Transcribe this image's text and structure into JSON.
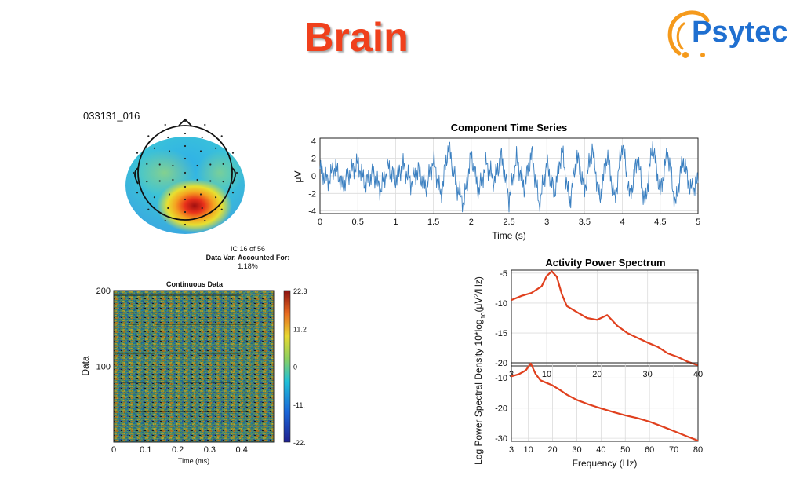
{
  "slide": {
    "title": "Brain",
    "logo_text": "Psytec"
  },
  "topomap": {
    "component_id": "033131_016",
    "ic_label": "IC 16 of 56",
    "var_label": "Data Var. Accounted For:",
    "var_value": "1.18%"
  },
  "colors": {
    "accent_title": "#f0401c",
    "spectrum_line": "#e0401e",
    "timeseries_line": "#3a7fc0",
    "logo_blue": "#1f6fd0",
    "logo_orange": "#f59a1c"
  },
  "chart_data": [
    {
      "id": "time-series",
      "type": "line",
      "title": "Component Time Series",
      "xlabel": "Time (s)",
      "ylabel": "μV",
      "xlim": [
        0,
        5
      ],
      "ylim": [
        -4.3,
        4.3
      ],
      "x_ticks": [
        "0",
        "0.5",
        "1",
        "1.5",
        "2",
        "2.5",
        "3",
        "3.5",
        "4",
        "4.5",
        "5"
      ],
      "y_ticks": [
        "4",
        "2",
        "0",
        "-2",
        "-4"
      ],
      "grid": true,
      "series": [
        {
          "x": [
            0,
            0.1,
            0.2,
            0.3,
            0.4,
            0.5,
            0.6,
            0.7,
            0.8,
            0.9,
            1.0,
            1.1,
            1.2,
            1.3,
            1.4,
            1.5,
            1.6,
            1.7,
            1.8,
            1.9,
            2.0,
            2.1,
            2.2,
            2.3,
            2.4,
            2.5,
            2.6,
            2.7,
            2.8,
            2.9,
            3.0,
            3.1,
            3.2,
            3.3,
            3.4,
            3.5,
            3.6,
            3.7,
            3.8,
            3.9,
            4.0,
            4.1,
            4.2,
            4.3,
            4.4,
            4.5,
            4.6,
            4.7,
            4.8,
            4.9,
            5.0
          ],
          "values": [
            0.8,
            -0.6,
            1.1,
            -1.2,
            0.5,
            1.4,
            -0.9,
            0.3,
            -1.6,
            1.0,
            -0.4,
            1.2,
            -0.8,
            0.6,
            -1.4,
            1.8,
            -2.3,
            3.5,
            -1.0,
            -3.2,
            2.4,
            -1.8,
            1.5,
            -0.6,
            2.2,
            -2.7,
            1.9,
            -1.3,
            2.6,
            -3.4,
            1.4,
            -2.0,
            3.0,
            -3.1,
            2.2,
            -1.6,
            3.2,
            -2.8,
            2.5,
            -2.9,
            3.8,
            -2.5,
            2.1,
            -3.3,
            3.6,
            -1.9,
            2.8,
            -3.4,
            2.0,
            -1.5,
            -0.8
          ]
        }
      ]
    },
    {
      "id": "continuous-data",
      "type": "heatmap",
      "title": "Continuous Data",
      "xlabel": "Time (ms)",
      "ylabel": "Data",
      "xlim": [
        0,
        0.5
      ],
      "ylim": [
        0,
        200
      ],
      "x_ticks": [
        "0",
        "0.1",
        "0.2",
        "0.3",
        "0.4"
      ],
      "y_ticks": [
        "200",
        "100"
      ],
      "colorbar_ticks": [
        "22.3",
        "11.2",
        "0",
        "-11.",
        "-22."
      ],
      "clim": [
        -22.3,
        22.3
      ]
    },
    {
      "id": "power-spectrum-upper",
      "type": "line",
      "title": "Activity Power Spectrum",
      "xlabel": "",
      "ylabel": "",
      "xlim": [
        3,
        40
      ],
      "ylim": [
        -20.5,
        -4.5
      ],
      "x_ticks": [
        "3",
        "10",
        "20",
        "30",
        "40"
      ],
      "y_ticks": [
        "-5",
        "-10",
        "-15",
        "-20"
      ],
      "grid": true,
      "series": [
        {
          "x": [
            3,
            5,
            7,
            9,
            10,
            11,
            12,
            13,
            14,
            16,
            18,
            20,
            22,
            24,
            26,
            28,
            30,
            32,
            34,
            36,
            38,
            40
          ],
          "values": [
            -9.5,
            -8.8,
            -8.3,
            -7.2,
            -5.5,
            -4.7,
            -5.6,
            -8.5,
            -10.5,
            -11.5,
            -12.5,
            -12.8,
            -12.0,
            -13.8,
            -15.0,
            -15.8,
            -16.6,
            -17.3,
            -18.4,
            -19.0,
            -19.8,
            -20.4
          ]
        }
      ]
    },
    {
      "id": "power-spectrum-lower",
      "type": "line",
      "title": "",
      "xlabel": "Frequency (Hz)",
      "ylabel": "Log Power Spectral Density 10*log10(μV²/Hz)",
      "xlim": [
        3,
        80
      ],
      "ylim": [
        -31,
        -5
      ],
      "x_ticks": [
        "3",
        "10",
        "20",
        "30",
        "40",
        "50",
        "60",
        "70",
        "80"
      ],
      "y_ticks": [
        "-10",
        "-20",
        "-30"
      ],
      "grid": true,
      "series": [
        {
          "x": [
            3,
            6,
            9,
            11,
            13,
            15,
            18,
            20,
            23,
            26,
            30,
            35,
            40,
            45,
            50,
            55,
            60,
            65,
            70,
            75,
            80
          ],
          "values": [
            -9.5,
            -8.8,
            -7.5,
            -5.2,
            -8.7,
            -10.8,
            -11.8,
            -12.5,
            -14.0,
            -15.6,
            -17.3,
            -18.8,
            -20.1,
            -21.3,
            -22.4,
            -23.3,
            -24.5,
            -26.0,
            -27.6,
            -29.2,
            -30.8
          ]
        }
      ]
    }
  ]
}
